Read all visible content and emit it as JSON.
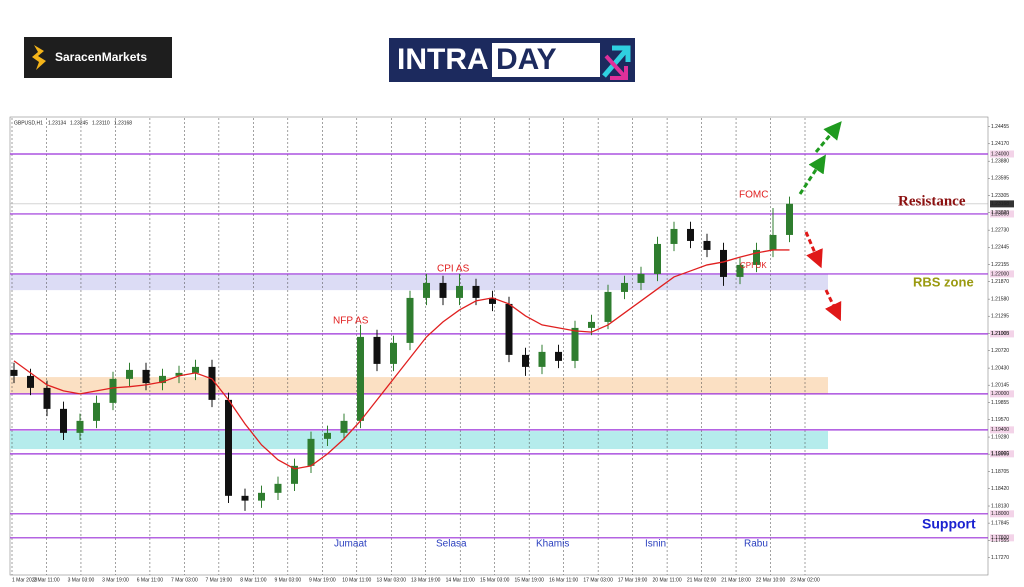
{
  "header": {
    "logo_left": "SaracenMarkets",
    "logo_center_a": "INTRA",
    "logo_center_b": "DAY"
  },
  "chart_data": {
    "type": "candlestick",
    "symbol": "GBPUSD,H1",
    "info_values": [
      {
        "value": 1.23134,
        "label": "1.23134"
      },
      1.23245,
      {
        "value": 1.2311,
        "label": "1.23110"
      },
      1.23168
    ],
    "ylim": [
      1.1703,
      1.246
    ],
    "yticks": [
      1.24455,
      {
        "value": 1.2417,
        "label": "1.24170"
      },
      {
        "value": 1.2388,
        "label": "1.23880"
      },
      1.23595,
      1.23305,
      {
        "value": 1.2302,
        "label": "1.23020"
      },
      {
        "value": 1.2273,
        "label": "1.22730"
      },
      1.22445,
      1.22155,
      {
        "value": 1.2187,
        "label": "1.21870"
      },
      {
        "value": 1.2158,
        "label": "1.21580"
      },
      1.21295,
      1.21005,
      {
        "value": 1.2072,
        "label": "1.20720"
      },
      {
        "value": 1.2043,
        "label": "1.20430"
      },
      1.20145,
      1.19855,
      {
        "value": 1.1957,
        "label": "1.19570"
      },
      {
        "value": 1.1928,
        "label": "1.19280"
      },
      1.18995,
      1.18705,
      {
        "value": 1.1842,
        "label": "1.18420"
      },
      {
        "value": 1.1813,
        "label": "1.18130"
      },
      1.17845,
      1.17555,
      {
        "value": 1.1727,
        "label": "1.17270"
      }
    ],
    "x_labels": [
      "1 Mar 2023",
      "2 Mar 11:00",
      "3 Mar 03:00",
      "3 Mar 19:00",
      "6 Mar 11:00",
      "7 Mar 03:00",
      "7 Mar 19:00",
      "8 Mar 11:00",
      "9 Mar 03:00",
      "9 Mar 19:00",
      "10 Mar 11:00",
      "13 Mar 03:00",
      "13 Mar 19:00",
      "14 Mar 11:00",
      "15 Mar 03:00",
      "15 Mar 19:00",
      "16 Mar 11:00",
      "17 Mar 03:00",
      "17 Mar 19:00",
      "20 Mar 11:00",
      "21 Mar 02:00",
      "21 Mar 18:00",
      "22 Mar 10:00",
      "23 Mar 02:00"
    ],
    "up_color": "#2f7d2f",
    "down_color": "#111111",
    "open": [
      1.204,
      1.203,
      1.201,
      1.1975,
      1.1935,
      1.1955,
      1.1985,
      1.2025,
      1.204,
      1.2018,
      1.203,
      1.2035,
      1.2045,
      1.199,
      1.183,
      1.1822,
      1.1835,
      1.185,
      1.188,
      1.1925,
      1.1935,
      1.1955,
      1.2095,
      1.205,
      1.2085,
      1.216,
      1.2185,
      1.216,
      1.218,
      1.216,
      1.215,
      1.2065,
      1.2045,
      1.207,
      1.2055,
      1.211,
      1.212,
      1.217,
      1.2185,
      1.22,
      1.225,
      1.2275,
      1.2255,
      1.224,
      1.2195,
      1.2215,
      1.224,
      1.2265
    ],
    "high": [
      1.2052,
      1.2042,
      1.2022,
      1.1987,
      1.1967,
      1.1997,
      1.2037,
      1.2052,
      1.2052,
      1.2042,
      1.2047,
      1.2057,
      1.2057,
      1.2002,
      1.1842,
      1.1847,
      1.1862,
      1.1892,
      1.1937,
      1.1947,
      1.1967,
      1.2115,
      1.2107,
      1.2097,
      1.2172,
      1.22,
      1.2197,
      1.22,
      1.2192,
      1.2172,
      1.2162,
      1.2077,
      1.2082,
      1.2082,
      1.2122,
      1.2132,
      1.2182,
      1.2197,
      1.2212,
      1.2262,
      1.2287,
      1.2287,
      1.2267,
      1.2252,
      1.2227,
      1.2252,
      1.231,
      1.2329
    ],
    "low": [
      1.2018,
      1.1998,
      1.1963,
      1.1923,
      1.1923,
      1.1943,
      1.1973,
      1.2013,
      1.2006,
      1.2006,
      1.2018,
      1.2023,
      1.1978,
      1.1818,
      1.1805,
      1.181,
      1.1823,
      1.1838,
      1.1868,
      1.1913,
      1.1923,
      1.1943,
      1.2038,
      1.2038,
      1.2073,
      1.2148,
      1.2148,
      1.2148,
      1.2148,
      1.2138,
      1.2053,
      1.203,
      1.2033,
      1.2043,
      1.2043,
      1.2098,
      1.2108,
      1.2158,
      1.2173,
      1.2188,
      1.2238,
      1.2243,
      1.2228,
      1.218,
      1.2183,
      1.2203,
      1.2228,
      1.2253
    ],
    "close": [
      1.203,
      1.201,
      1.1975,
      1.1935,
      1.1955,
      1.1985,
      1.2025,
      1.204,
      1.2018,
      1.203,
      1.2035,
      1.2045,
      1.199,
      1.183,
      1.1822,
      1.1835,
      1.185,
      1.188,
      1.1925,
      1.1935,
      1.1955,
      1.2095,
      1.205,
      1.2085,
      1.216,
      1.2185,
      1.216,
      1.218,
      1.216,
      1.215,
      1.2065,
      1.2045,
      1.207,
      1.2055,
      1.211,
      1.212,
      1.217,
      1.2185,
      1.22,
      1.225,
      1.2275,
      1.2255,
      1.224,
      1.2195,
      1.2215,
      1.224,
      1.2265,
      1.2317
    ],
    "ma": {
      "color": "#e02020",
      "values": [
        1.2055,
        1.2035,
        1.2015,
        1.2005,
        1.2,
        1.2005,
        1.201,
        1.2012,
        1.2015,
        1.202,
        1.203,
        1.2035,
        1.2025,
        1.199,
        1.195,
        1.1915,
        1.189,
        1.1875,
        1.188,
        1.19,
        1.1925,
        1.1955,
        1.199,
        1.2025,
        1.206,
        1.2095,
        1.212,
        1.214,
        1.2155,
        1.216,
        1.215,
        1.213,
        1.2115,
        1.211,
        1.2105,
        1.2103,
        1.2115,
        1.2135,
        1.2155,
        1.2175,
        1.2195,
        1.2205,
        1.2215,
        1.222,
        1.2228,
        1.2235,
        1.224,
        1.224
      ]
    },
    "current_price": 1.23168,
    "level_color": "#9b30d9",
    "levels": [
      {
        "value": 1.24,
        "label": "1.24000"
      },
      {
        "value": 1.23,
        "label": "1.23000"
      },
      {
        "value": 1.22,
        "label": "1.22000"
      },
      {
        "value": 1.21,
        "label": "1.21000"
      },
      {
        "value": 1.2,
        "label": "1.20000"
      },
      {
        "value": 1.194,
        "label": "1.19400"
      },
      {
        "value": 1.19,
        "label": "1.19000"
      },
      {
        "value": 1.18,
        "label": "1.18000"
      },
      {
        "value": 1.176,
        "label": "1.17600"
      }
    ],
    "zones": [
      {
        "from": 1.22,
        "to": 1.2173,
        "color": "#dcdcf5"
      },
      {
        "from": 1.2028,
        "to": 1.2,
        "color": "#fbe0c3"
      },
      {
        "from": 1.1938,
        "to": 1.1908,
        "color": "#b5ecec"
      }
    ],
    "annotations": {
      "nfp": "NFP AS",
      "cpi_as": "CPI AS",
      "fomc": "FOMC",
      "cpi_uk": "CPI UK",
      "resistance": "Resistance",
      "rbs": "RBS zone",
      "support": "Support"
    },
    "days": [
      "Jumaat",
      "Selasa",
      "Khamis",
      "Isnin",
      "Rabu"
    ]
  }
}
